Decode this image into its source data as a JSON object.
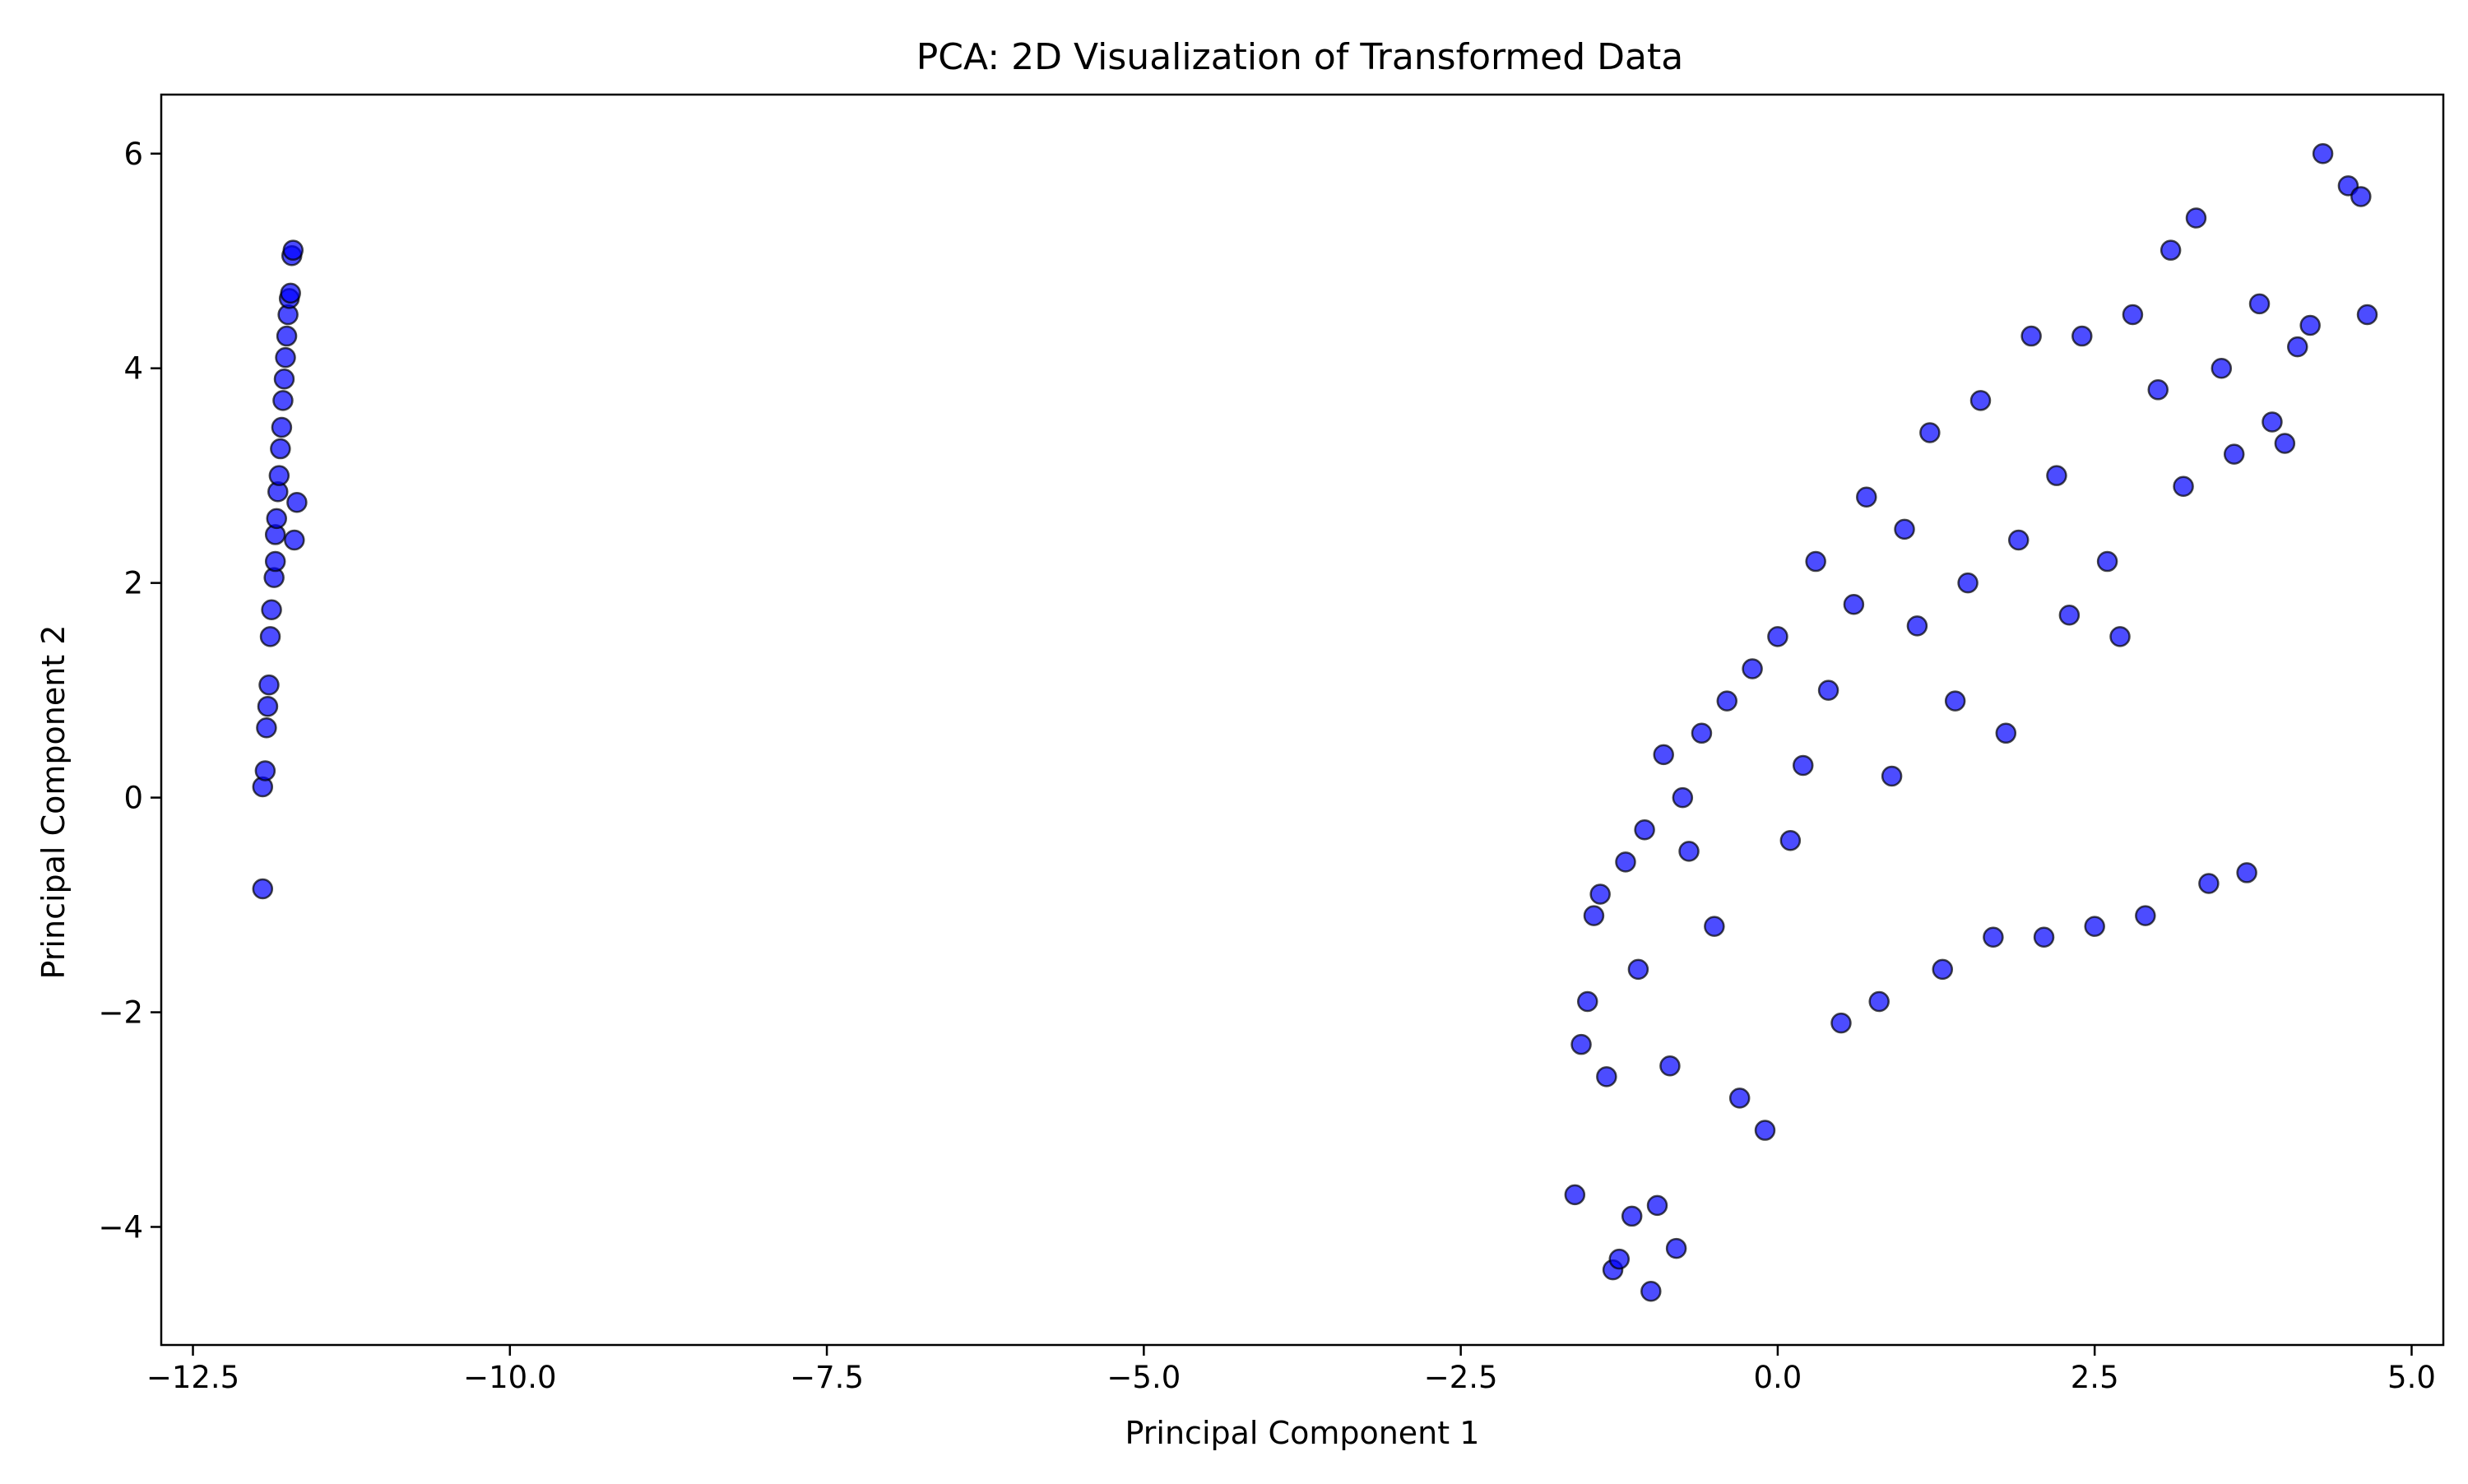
{
  "chart_data": {
    "type": "scatter",
    "title": "PCA: 2D Visualization of Transformed Data",
    "xlabel": "Principal Component 1",
    "ylabel": "Principal Component 2",
    "xlim": [
      -12.75,
      5.25
    ],
    "ylim": [
      -5.1,
      6.55
    ],
    "xticks": [
      -12.5,
      -10.0,
      -7.5,
      -5.0,
      -2.5,
      0.0,
      2.5,
      5.0
    ],
    "xtick_labels": [
      "−12.5",
      "−10.0",
      "−7.5",
      "−5.0",
      "−2.5",
      "0.0",
      "2.5",
      "5.0"
    ],
    "yticks": [
      -4,
      -2,
      0,
      2,
      4,
      6
    ],
    "ytick_labels": [
      "−4",
      "−2",
      "0",
      "2",
      "4",
      "6"
    ],
    "grid": false,
    "legend": "none",
    "marker_color": "#0000ff",
    "marker_edge_color": "#000000",
    "marker_alpha": 0.7,
    "series": [
      {
        "x": [
          -11.95,
          -11.95,
          -11.93,
          -11.92,
          -11.91,
          -11.9,
          -11.89,
          -11.88,
          -11.86,
          -11.85,
          -11.85,
          -11.84,
          -11.83,
          -11.82,
          -11.81,
          -11.8,
          -11.79,
          -11.78,
          -11.77,
          -11.76,
          -11.75,
          -11.74,
          -11.73,
          -11.72,
          -11.71,
          -11.7,
          -11.68
        ],
        "y": [
          0.1,
          -0.85,
          0.25,
          0.65,
          0.85,
          1.05,
          1.5,
          1.75,
          2.05,
          2.2,
          2.45,
          2.6,
          2.85,
          3.0,
          3.25,
          3.45,
          3.7,
          3.9,
          4.1,
          4.3,
          4.5,
          4.65,
          4.7,
          5.05,
          5.1,
          2.4,
          2.75
        ]
      },
      {
        "x": [
          -1.6,
          -1.55,
          -1.5,
          -1.45,
          -1.4,
          -1.35,
          -1.3,
          -1.25,
          -1.2,
          -1.15,
          -1.1,
          -1.05,
          -1.0,
          -0.95,
          -0.9,
          -0.85,
          -0.8,
          -0.75,
          -0.7,
          -0.6,
          -0.5,
          -0.4,
          -0.3,
          -0.2,
          -0.1,
          0.0,
          0.1,
          0.2,
          0.3,
          0.4,
          0.5,
          0.6,
          0.7,
          0.8,
          0.9,
          1.0,
          1.1,
          1.2,
          1.3,
          1.4,
          1.5,
          1.6,
          1.7,
          1.8,
          1.9,
          2.0,
          2.1,
          2.2,
          2.3,
          2.4,
          2.5,
          2.6,
          2.7,
          2.8,
          2.9,
          3.0,
          3.1,
          3.2,
          3.3,
          3.4,
          3.5,
          3.6,
          3.7,
          3.8,
          3.9,
          4.0,
          4.1,
          4.2,
          4.3,
          4.5,
          4.6,
          4.65
        ],
        "y": [
          -3.7,
          -2.3,
          -1.9,
          -1.1,
          -0.9,
          -2.6,
          -4.4,
          -4.3,
          -0.6,
          -3.9,
          -1.6,
          -0.3,
          -4.6,
          -3.8,
          0.4,
          -2.5,
          -4.2,
          0.0,
          -0.5,
          0.6,
          -1.2,
          0.9,
          -2.8,
          1.2,
          -3.1,
          1.5,
          -0.4,
          0.3,
          2.2,
          1.0,
          -2.1,
          1.8,
          2.8,
          -1.9,
          0.2,
          2.5,
          1.6,
          3.4,
          -1.6,
          0.9,
          2.0,
          3.7,
          -1.3,
          0.6,
          2.4,
          4.3,
          -1.3,
          3.0,
          1.7,
          4.3,
          -1.2,
          2.2,
          1.5,
          4.5,
          -1.1,
          3.8,
          5.1,
          2.9,
          5.4,
          -0.8,
          4.0,
          3.2,
          -0.7,
          4.6,
          3.5,
          3.3,
          4.2,
          4.4,
          6.0,
          5.7,
          5.6,
          4.5
        ]
      }
    ]
  }
}
